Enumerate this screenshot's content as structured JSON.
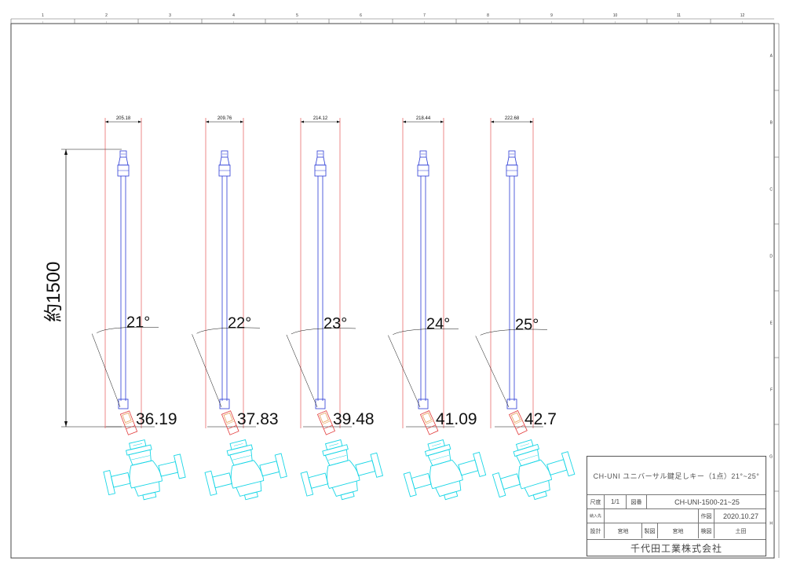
{
  "border_top": [
    "1",
    "2",
    "3",
    "4",
    "5",
    "6",
    "7",
    "8",
    "9",
    "10",
    "11",
    "12"
  ],
  "border_right": [
    "A",
    "B",
    "C",
    "D",
    "E",
    "F",
    "G",
    "H"
  ],
  "overall_dimension": "約1500",
  "units": [
    {
      "width": "205.18",
      "angle": "21°",
      "offset": "36.19"
    },
    {
      "width": "209.76",
      "angle": "22°",
      "offset": "37.83"
    },
    {
      "width": "214.12",
      "angle": "23°",
      "offset": "39.48"
    },
    {
      "width": "218.44",
      "angle": "24°",
      "offset": "41.09"
    },
    {
      "width": "222.68",
      "angle": "25°",
      "offset": "42.7"
    }
  ],
  "title_block": {
    "title": "CH-UNI ユニバーサル鍵足しキー（1点）21°~25°",
    "scale_label": "尺度",
    "scale_value": "1/1",
    "drawing_no_label": "図番",
    "drawing_no": "CH-UNI-1500-21~25",
    "delivery_label": "納入先",
    "delivery_value": "",
    "date_label": "作図",
    "date_value": "2020.10.27",
    "design_label": "設計",
    "design_value": "宮地",
    "made_label": "製図",
    "made_value": "宮地",
    "check_label": "検図",
    "check_value": "土田",
    "company": "千代田工業株式会社"
  },
  "colors": {
    "key_line": "#2b3bd6",
    "guide_line": "#e23a3a",
    "valve": "#18d6e6",
    "dimension": "#111111",
    "fitting_orange": "#e8a05a"
  }
}
